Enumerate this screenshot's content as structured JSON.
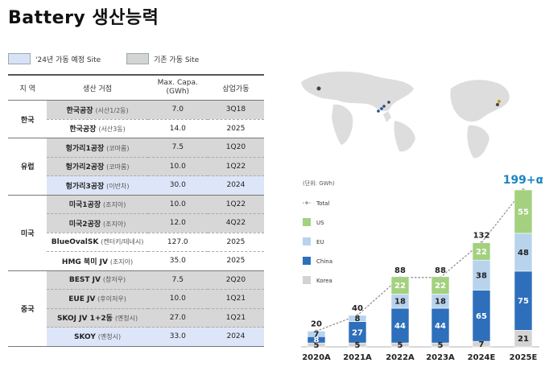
{
  "page": {
    "title": "Battery 생산능력"
  },
  "legend": {
    "planned": "'24년 가동 예정 Site",
    "existing": "기존 가동 Site"
  },
  "table": {
    "headers": {
      "region": "지 역",
      "site": "생산 거점",
      "capa": "Max. Capa.\n(GWh)",
      "start": "상업가동"
    },
    "groups": [
      {
        "region": "한국",
        "rows": [
          {
            "name": "한국공장",
            "detail": "(서산1/2동)",
            "capa": "7.0",
            "start": "3Q18",
            "status": "existing"
          },
          {
            "name": "한국공장",
            "detail": "(서산3동)",
            "capa": "14.0",
            "start": "2025",
            "status": "none"
          }
        ]
      },
      {
        "region": "유럽",
        "rows": [
          {
            "name": "헝가리1공장",
            "detail": "(코마롬)",
            "capa": "7.5",
            "start": "1Q20",
            "status": "existing"
          },
          {
            "name": "헝가리2공장",
            "detail": "(코마롬)",
            "capa": "10.0",
            "start": "1Q22",
            "status": "existing"
          },
          {
            "name": "헝가리3공장",
            "detail": "(이반차)",
            "capa": "30.0",
            "start": "2024",
            "status": "planned"
          }
        ]
      },
      {
        "region": "미국",
        "rows": [
          {
            "name": "미국1공장",
            "detail": "(조지아)",
            "capa": "10.0",
            "start": "1Q22",
            "status": "existing"
          },
          {
            "name": "미국2공장",
            "detail": "(조지아)",
            "capa": "12.0",
            "start": "4Q22",
            "status": "existing"
          },
          {
            "name": "BlueOvalSK",
            "detail": "(켄터키/테네시)",
            "capa": "127.0",
            "start": "2025",
            "status": "none"
          },
          {
            "name": "HMG 북미 JV",
            "detail": "(조지아)",
            "capa": "35.0",
            "start": "2025",
            "status": "none"
          }
        ]
      },
      {
        "region": "중국",
        "rows": [
          {
            "name": "BEST JV",
            "detail": "(창저우)",
            "capa": "7.5",
            "start": "2Q20",
            "status": "existing"
          },
          {
            "name": "EUE JV",
            "detail": "(후이저우)",
            "capa": "10.0",
            "start": "1Q21",
            "status": "existing"
          },
          {
            "name": "SKOJ JV 1+2동",
            "detail": "(옌청시)",
            "capa": "27.0",
            "start": "1Q21",
            "status": "existing"
          },
          {
            "name": "SKOY",
            "detail": "(옌청시)",
            "capa": "33.0",
            "start": "2024",
            "status": "planned"
          }
        ]
      }
    ]
  },
  "chart_data": {
    "type": "bar",
    "unit_label": "(단위: GWh)",
    "categories": [
      "2020A",
      "2021A",
      "2022A",
      "2023A",
      "2024E",
      "2025E"
    ],
    "series": [
      {
        "name": "Korea",
        "color": "#d3d3d3",
        "values": [
          5,
          5,
          5,
          5,
          7,
          21
        ]
      },
      {
        "name": "China",
        "color": "#2e6fbb",
        "values": [
          8,
          27,
          44,
          44,
          65,
          75
        ]
      },
      {
        "name": "EU",
        "color": "#b8d3ec",
        "values": [
          7,
          8,
          18,
          18,
          38,
          48
        ]
      },
      {
        "name": "US",
        "color": "#a3d17f",
        "values": [
          0,
          0,
          22,
          22,
          22,
          55
        ]
      }
    ],
    "total": {
      "name": "Total",
      "values": [
        20,
        40,
        88,
        88,
        132,
        199
      ],
      "labels": [
        "20",
        "40",
        "88",
        "88",
        "132",
        "199+α"
      ]
    },
    "legend_order": [
      "Total",
      "US",
      "EU",
      "China",
      "Korea"
    ],
    "total_color": "#888888",
    "highlight_color": "#1b84c4"
  }
}
